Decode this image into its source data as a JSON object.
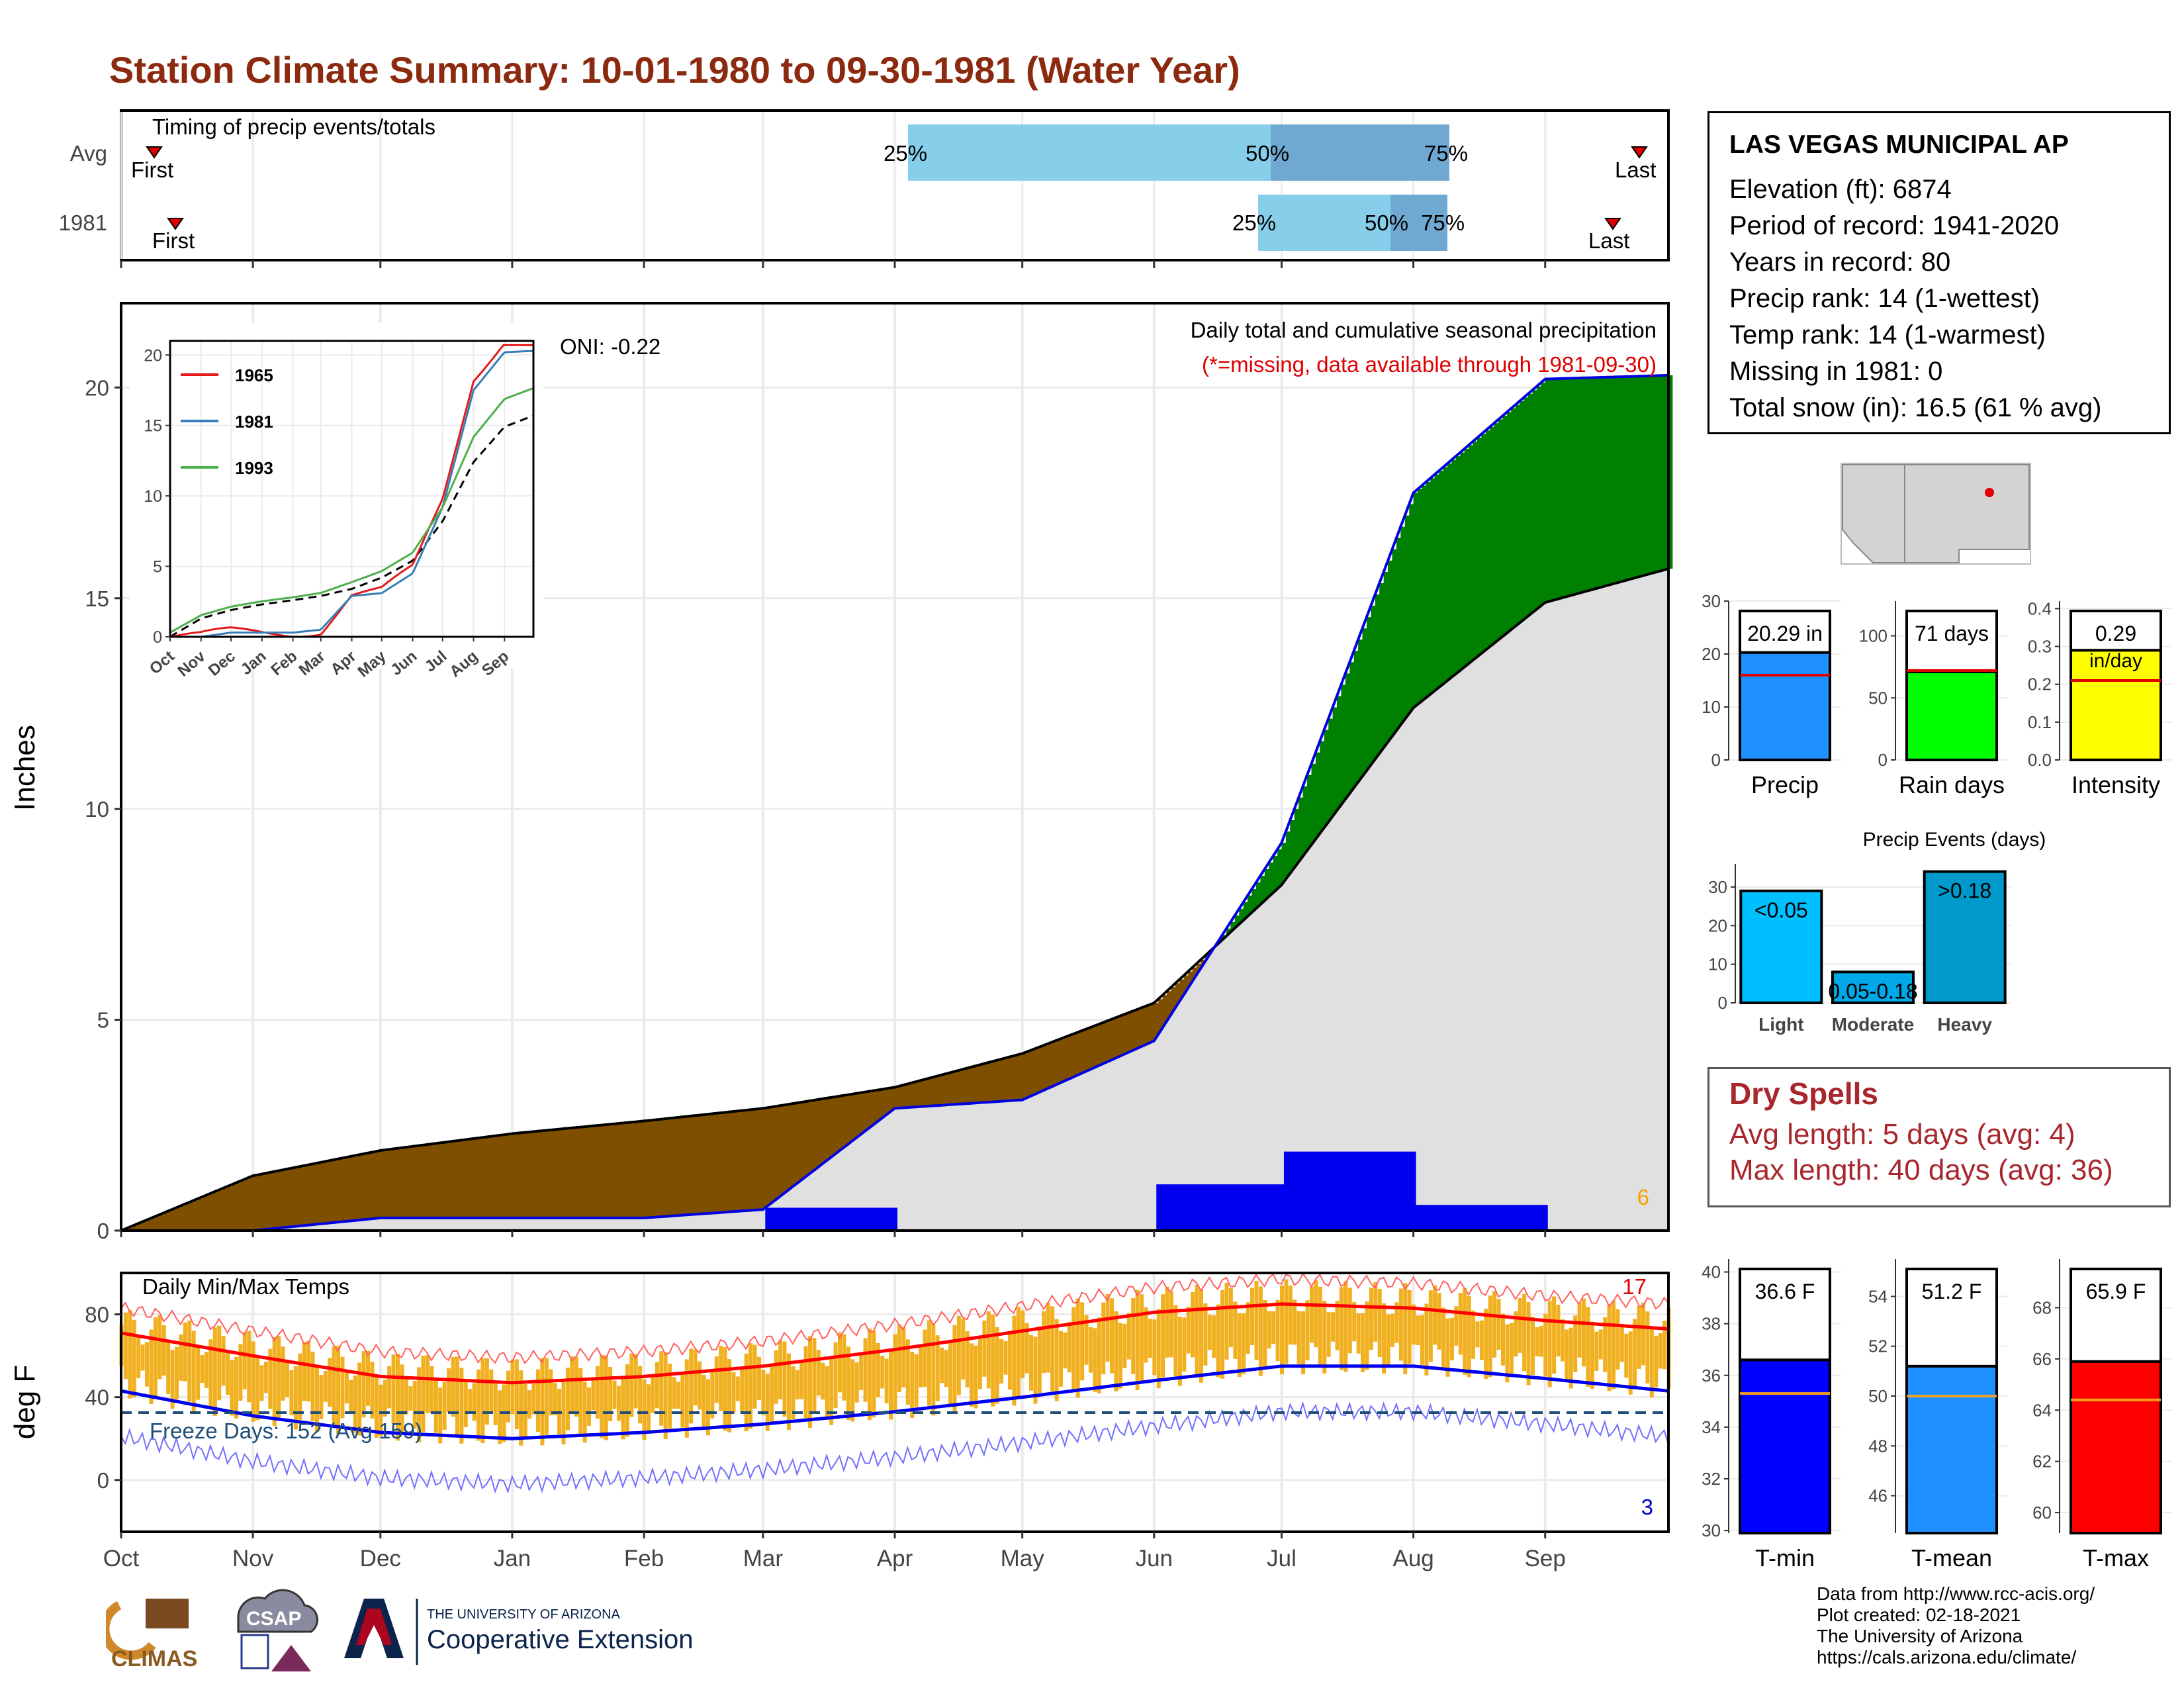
{
  "title": "Station Climate Summary: 10-01-1980 to 09-30-1981 (Water Year)",
  "colors": {
    "title": "#8b2a0e",
    "precip_brown": "#7f4f00",
    "precip_green": "#008000",
    "grey_fill": "#e0e0e0",
    "tmax": "#ff0000",
    "tmin": "#0000ff",
    "temp_bar": "#f0b020"
  },
  "timing": {
    "label": "Timing of precip events/totals",
    "rows": [
      {
        "name": "Avg",
        "first_label": "First",
        "last_label": "Last",
        "p25": "25%",
        "p50": "50%",
        "p75": "75%"
      },
      {
        "name": "1981",
        "first_label": "First",
        "last_label": "Last",
        "p25": "25%",
        "p50": "50%",
        "p75": "75%"
      }
    ]
  },
  "main": {
    "ylabel": "Inches",
    "yticks": [
      "0",
      "5",
      "10",
      "15",
      "20"
    ],
    "oni": "ONI: -0.22",
    "legend_title": "Daily total and cumulative seasonal precipitation",
    "missing_note": "(*=missing, data available through 1981-09-30)",
    "corner_count": "6"
  },
  "inset": {
    "yticks": [
      "0",
      "5",
      "10",
      "15",
      "20"
    ],
    "months": [
      "Oct",
      "Nov",
      "Dec",
      "Jan",
      "Feb",
      "Mar",
      "Apr",
      "May",
      "Jun",
      "Jul",
      "Aug",
      "Sep"
    ],
    "legend": [
      "1965",
      "1981",
      "1993"
    ],
    "colors": [
      "#e41a1c",
      "#377eb8",
      "#4daf4a"
    ]
  },
  "temps": {
    "ylabel": "deg F",
    "label": "Daily Min/Max Temps",
    "yticks": [
      "0",
      "40",
      "80"
    ],
    "freeze": "Freeze Days: 152 (Avg 159)",
    "max_count": "17",
    "min_count": "3"
  },
  "months": [
    "Oct",
    "Nov",
    "Dec",
    "Jan",
    "Feb",
    "Mar",
    "Apr",
    "May",
    "Jun",
    "Jul",
    "Aug",
    "Sep"
  ],
  "station": {
    "name": "LAS VEGAS MUNICIPAL AP",
    "lines": [
      "Elevation (ft): 6874",
      "Period of record: 1941-2020",
      "Years in record: 80",
      "Precip rank: 14 (1-wettest)",
      "Temp rank: 14 (1-warmest)",
      "Missing in 1981: 0",
      "Total snow (in): 16.5 (61 % avg)"
    ]
  },
  "summary_bars": {
    "precip": {
      "label": "Precip",
      "value_text": "20.29 in",
      "yticks": [
        "0",
        "10",
        "20",
        "30"
      ]
    },
    "raindays": {
      "label": "Rain days",
      "value_text": "71 days",
      "yticks": [
        "0",
        "50",
        "100"
      ]
    },
    "intensity": {
      "label": "Intensity",
      "value_text": "0.29",
      "value_unit": "in/day",
      "yticks": [
        "0.0",
        "0.1",
        "0.2",
        "0.3",
        "0.4"
      ]
    }
  },
  "events": {
    "title": "Precip Events (days)",
    "yticks": [
      "0",
      "10",
      "20",
      "30"
    ],
    "categories": [
      "Light",
      "Moderate",
      "Heavy"
    ],
    "bar_labels": [
      "<0.05",
      "0.05-0.18",
      ">0.18"
    ]
  },
  "dry_spells": {
    "title": "Dry Spells",
    "avg": "Avg length: 5 days (avg: 4)",
    "max": "Max length: 40 days (avg: 36)"
  },
  "temp_bars": {
    "tmin": {
      "label": "T-min",
      "value_text": "36.6 F",
      "yticks": [
        "30",
        "32",
        "34",
        "36",
        "38",
        "40"
      ]
    },
    "tmean": {
      "label": "T-mean",
      "value_text": "51.2 F",
      "yticks": [
        "46",
        "48",
        "50",
        "52",
        "54"
      ]
    },
    "tmax": {
      "label": "T-max",
      "value_text": "65.9 F",
      "yticks": [
        "60",
        "62",
        "64",
        "66",
        "68"
      ]
    }
  },
  "credits": [
    "Data from http://www.rcc-acis.org/",
    "Plot created: 02-18-2021",
    "The University of Arizona",
    "https://cals.arizona.edu/climate/"
  ],
  "logos": {
    "climas": "CLIMAS",
    "csap": "CSAP",
    "ua_small": "THE UNIVERSITY OF ARIZONA",
    "ua_big": "Cooperative Extension"
  },
  "chart_data": [
    {
      "type": "bar",
      "title": "Timing of precip events/totals",
      "series": [
        {
          "name": "Avg",
          "p25_date": "1981-04-03",
          "p50_date": "1981-06-26",
          "p75_date": "1981-07-31",
          "first": "1980-10-09",
          "last": "1981-09-20"
        },
        {
          "name": "1981",
          "p25_date": "1981-06-24",
          "p50_date": "1981-07-27",
          "p75_date": "1981-07-31",
          "first": "1980-10-13",
          "last": "1981-09-14"
        }
      ]
    },
    {
      "type": "area",
      "title": "Daily total and cumulative seasonal precipitation",
      "ylabel": "Inches",
      "ylim": [
        0,
        22
      ],
      "x": [
        "1980-10-01",
        "1980-11-01",
        "1980-12-01",
        "1981-01-01",
        "1981-02-01",
        "1981-03-01",
        "1981-04-01",
        "1981-05-01",
        "1981-06-01",
        "1981-07-01",
        "1981-08-01",
        "1981-09-01",
        "1981-09-30"
      ],
      "series": [
        {
          "name": "1981",
          "values": [
            0,
            0,
            0.3,
            0.3,
            0.3,
            0.5,
            2.9,
            3.1,
            4.5,
            9.2,
            17.5,
            20.2,
            20.29
          ]
        },
        {
          "name": "Avg",
          "values": [
            0,
            1.3,
            1.9,
            2.3,
            2.6,
            2.9,
            3.4,
            4.2,
            5.4,
            8.2,
            12.4,
            14.9,
            15.7
          ]
        }
      ]
    },
    {
      "type": "line",
      "title": "Daily Min/Max Temps",
      "ylabel": "deg F",
      "ylim": [
        -25,
        100
      ],
      "x": [
        "Oct",
        "Nov",
        "Dec",
        "Jan",
        "Feb",
        "Mar",
        "Apr",
        "May",
        "Jun",
        "Jul",
        "Aug",
        "Sep",
        "end"
      ],
      "series": [
        {
          "name": "Avg max",
          "values": [
            71,
            60,
            50,
            47,
            50,
            55,
            63,
            72,
            81,
            85,
            83,
            77,
            73
          ]
        },
        {
          "name": "Avg min",
          "values": [
            43,
            31,
            23,
            20,
            23,
            27,
            33,
            40,
            48,
            55,
            55,
            49,
            43
          ]
        }
      ]
    },
    {
      "type": "bar",
      "categories": [
        "Precip",
        "Rain days",
        "Intensity"
      ],
      "values": [
        20.29,
        71,
        0.29
      ],
      "avg": [
        16.0,
        72,
        0.21
      ]
    },
    {
      "type": "bar",
      "title": "Precip Events (days)",
      "categories": [
        "Light",
        "Moderate",
        "Heavy"
      ],
      "values": [
        29,
        8,
        34
      ]
    },
    {
      "type": "bar",
      "categories": [
        "T-min",
        "T-mean",
        "T-max"
      ],
      "values": [
        36.6,
        51.2,
        65.9
      ],
      "avg": [
        35.3,
        50.0,
        64.4
      ]
    }
  ]
}
